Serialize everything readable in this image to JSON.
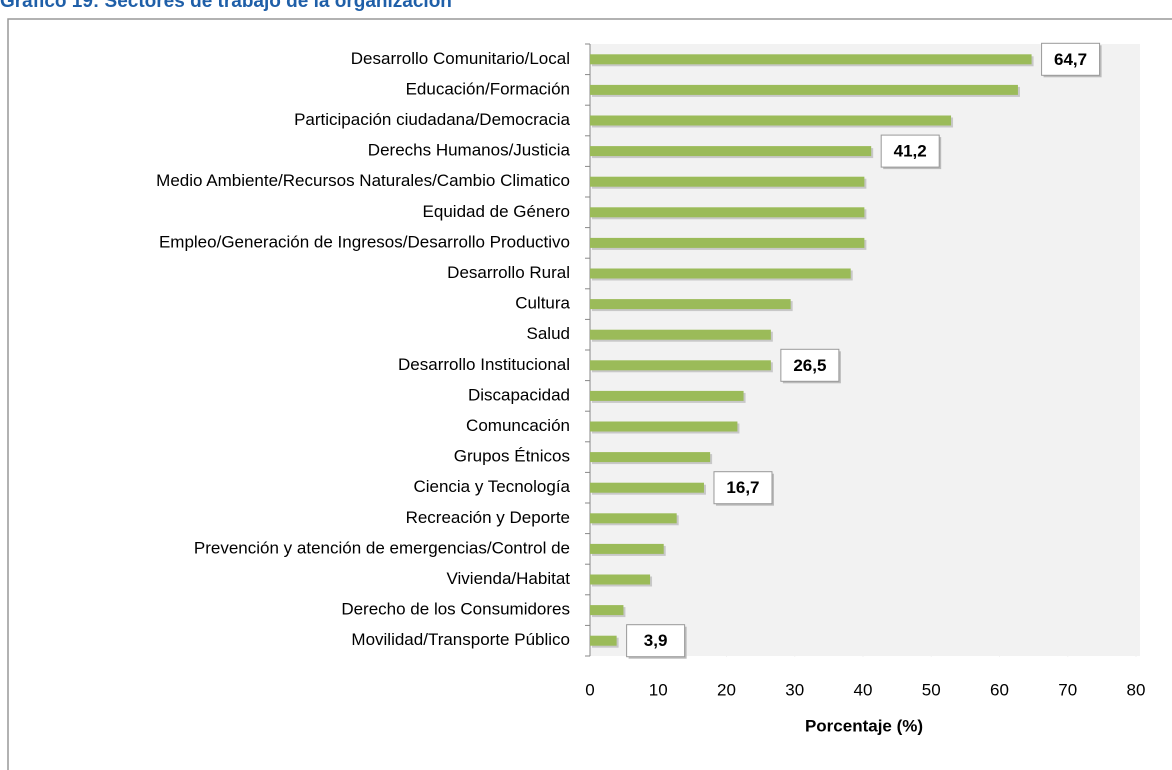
{
  "chart_data": {
    "type": "bar",
    "orientation": "horizontal",
    "title": "Gráfico 19: Sectores de trabajo de la organización",
    "x_label": "Porcentaje (%)",
    "categories": [
      "Desarrollo Comunitario/Local",
      "Educación/Formación",
      "Participación ciudadana/Democracia",
      "Derechs Humanos/Justicia",
      "Medio Ambiente/Recursos Naturales/Cambio Climatico",
      "Equidad de Género",
      "Empleo/Generación de Ingresos/Desarrollo Productivo",
      "Desarrollo Rural",
      "Cultura",
      "Salud",
      "Desarrollo Institucional",
      "Discapacidad",
      "Comuncación",
      "Grupos Étnicos",
      "Ciencia y Tecnología",
      "Recreación y Deporte",
      "Prevención y atención de emergencias/Control de",
      "Vivienda/Habitat",
      "Derecho de los Consumidores",
      "Movilidad/Transporte Público"
    ],
    "values": [
      64.7,
      62.7,
      52.9,
      41.2,
      40.2,
      40.2,
      40.2,
      38.2,
      29.4,
      26.5,
      26.5,
      22.5,
      21.6,
      17.6,
      16.7,
      12.7,
      10.8,
      8.8,
      4.9,
      3.9
    ],
    "value_labels": [
      "64,7",
      null,
      null,
      "41,2",
      null,
      null,
      null,
      null,
      null,
      null,
      "26,5",
      null,
      null,
      null,
      "16,7",
      null,
      null,
      null,
      null,
      "3,9"
    ],
    "color": "#9bbb59",
    "xlim": [
      0,
      80
    ],
    "xticks": [
      0,
      10,
      20,
      30,
      40,
      50,
      60,
      70,
      80
    ],
    "grid": false
  }
}
